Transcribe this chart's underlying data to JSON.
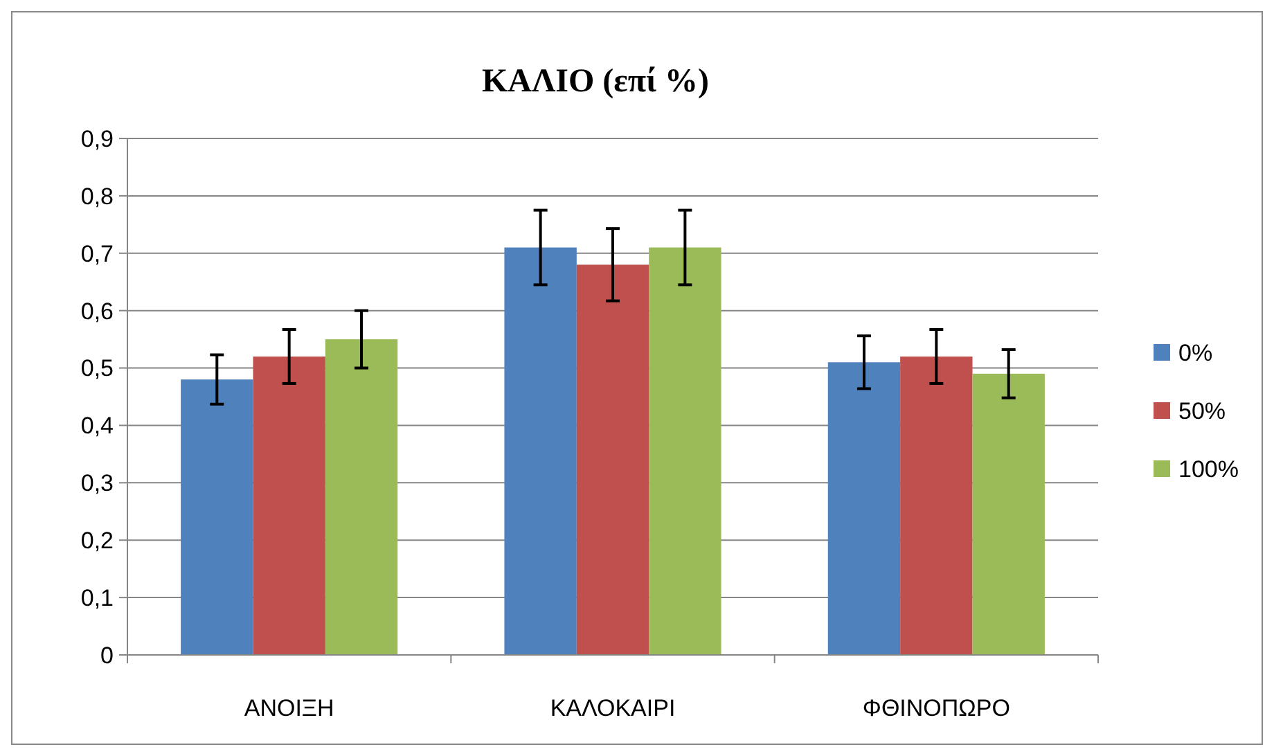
{
  "chart_data": {
    "type": "bar",
    "title": "ΚΑΛΙΟ (επί %)",
    "categories": [
      "ΑΝΟΙΞΗ",
      "ΚΑΛΟΚΑΙΡΙ",
      "ΦΘΙΝΟΠΩΡΟ"
    ],
    "series": [
      {
        "name": "0%",
        "color": "#4f81bd",
        "values": [
          0.48,
          0.71,
          0.51
        ],
        "errors": [
          0.043,
          0.065,
          0.046
        ]
      },
      {
        "name": "50%",
        "color": "#c0504d",
        "values": [
          0.52,
          0.68,
          0.52
        ],
        "errors": [
          0.047,
          0.063,
          0.047
        ]
      },
      {
        "name": "100%",
        "color": "#9bbb59",
        "values": [
          0.55,
          0.71,
          0.49
        ],
        "errors": [
          0.05,
          0.065,
          0.042
        ]
      }
    ],
    "ylim": [
      0,
      0.9
    ],
    "yticks": [
      {
        "value": 0,
        "label": "0"
      },
      {
        "value": 0.1,
        "label": "0,1"
      },
      {
        "value": 0.2,
        "label": "0,2"
      },
      {
        "value": 0.3,
        "label": "0,3"
      },
      {
        "value": 0.4,
        "label": "0,4"
      },
      {
        "value": 0.5,
        "label": "0,5"
      },
      {
        "value": 0.6,
        "label": "0,6"
      },
      {
        "value": 0.7,
        "label": "0,7"
      },
      {
        "value": 0.8,
        "label": "0,8"
      },
      {
        "value": 0.9,
        "label": "0,9"
      }
    ],
    "grid": "y",
    "legend": "right"
  }
}
